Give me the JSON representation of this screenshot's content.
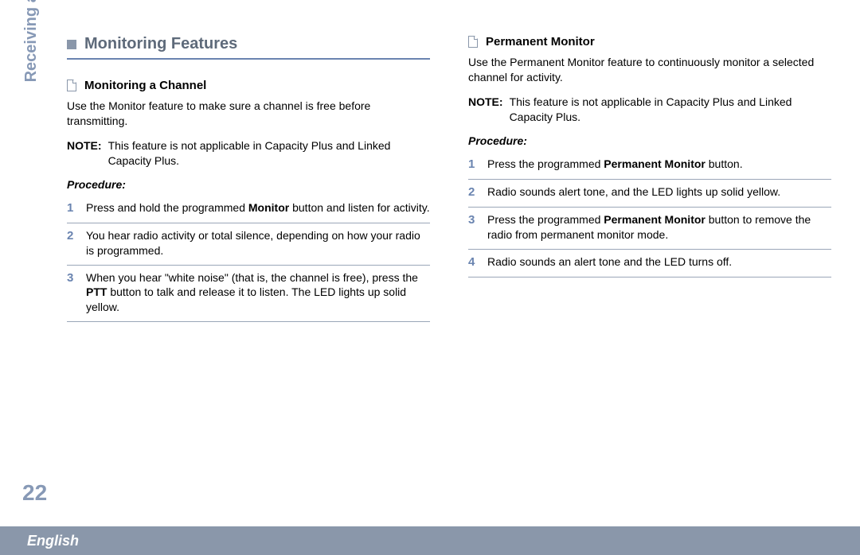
{
  "colors": {
    "accent_line": "#6a84b0",
    "bullet_fill": "#8a97aa",
    "heading_text": "#5e6a7a",
    "step_number": "#6a84b0",
    "step_divider": "#9aa6b8",
    "side_text": "#8799b6",
    "footer_bg": "#8a97aa",
    "footer_text": "#ffffff",
    "body_text": "#000000",
    "page_bg": "#ffffff"
  },
  "typography": {
    "font_family": "Arial",
    "main_heading_pt": 20,
    "sub_heading_pt": 15,
    "body_pt": 14,
    "step_num_pt": 15,
    "side_pt": 20,
    "page_num_pt": 28,
    "footer_pt": 18
  },
  "side_tab": "Receiving and Making Calls",
  "page_number": "22",
  "footer_language": "English",
  "left": {
    "main_heading": "Monitoring Features",
    "section1": {
      "heading": "Monitoring a Channel",
      "intro": "Use the Monitor feature to make sure a channel is free before transmitting.",
      "note_label": "NOTE:",
      "note_text": "This feature is not applicable in Capacity Plus and Linked Capacity Plus.",
      "procedure_label": "Procedure:",
      "steps": [
        {
          "num": "1",
          "pre": "Press and hold the programmed ",
          "bold": "Monitor",
          "post": " button and listen for activity."
        },
        {
          "num": "2",
          "pre": "You hear radio activity or total silence, depending on how your radio is programmed.",
          "bold": "",
          "post": ""
        },
        {
          "num": "3",
          "pre": "When you hear \"white noise\" (that is, the channel is free), press the ",
          "bold": "PTT",
          "post": " button to talk and release it to listen. The LED lights up solid yellow."
        }
      ]
    }
  },
  "right": {
    "section2": {
      "heading": "Permanent Monitor",
      "intro": "Use the Permanent Monitor feature to continuously monitor a selected channel for activity.",
      "note_label": "NOTE:",
      "note_text": "This feature is not applicable in Capacity Plus and Linked Capacity Plus.",
      "procedure_label": "Procedure:",
      "steps": [
        {
          "num": "1",
          "pre": "Press the programmed ",
          "bold": "Permanent Monitor",
          "post": " button."
        },
        {
          "num": "2",
          "pre": "Radio sounds alert tone, and the LED lights up solid yellow.",
          "bold": "",
          "post": ""
        },
        {
          "num": "3",
          "pre": "Press the programmed ",
          "bold": "Permanent Monitor",
          "post": " button to remove the radio from permanent monitor mode."
        },
        {
          "num": "4",
          "pre": "Radio sounds an alert tone and the LED turns off.",
          "bold": "",
          "post": ""
        }
      ]
    }
  }
}
